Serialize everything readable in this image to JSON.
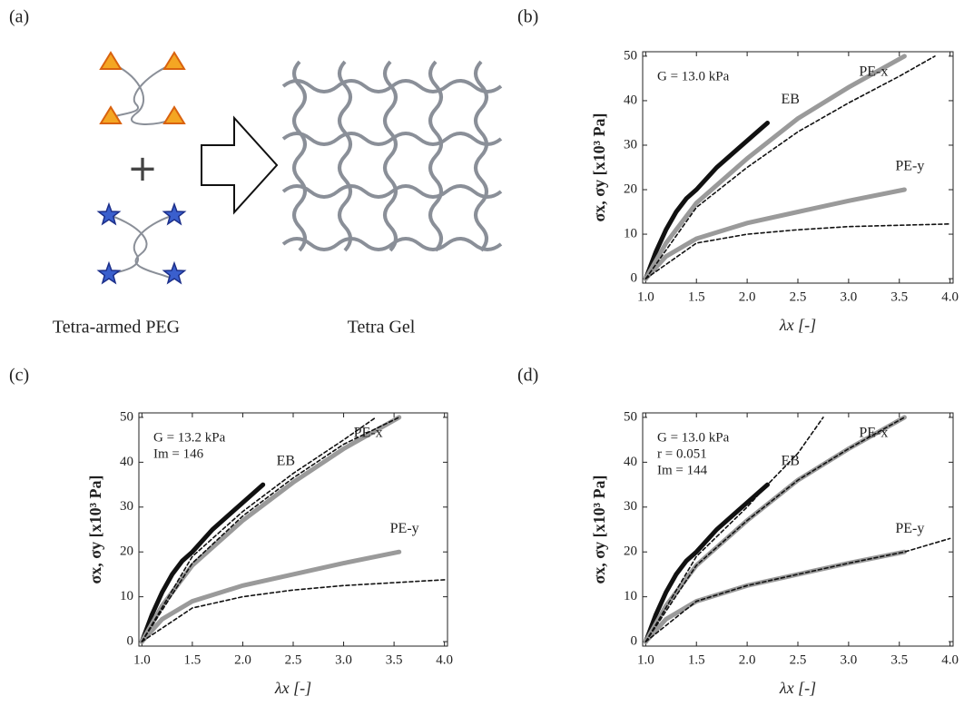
{
  "panel_a": {
    "label": "(a)",
    "plus": "+",
    "left_caption": "Tetra-armed PEG",
    "right_caption": "Tetra Gel"
  },
  "chart_data": [
    {
      "type": "line",
      "panel": "(b)",
      "xlabel": "λx [-]",
      "ylabel": "σx, σy [x10³ Pa]",
      "annotations": [
        "G = 13.0 kPa"
      ],
      "xlim": [
        0.97,
        4.03
      ],
      "ylim": [
        -1,
        51
      ],
      "xticks": [
        {
          "value": 1,
          "label": "1.0"
        },
        {
          "value": 1.5,
          "label": "1.5"
        },
        {
          "value": 2,
          "label": "2.0"
        },
        {
          "value": 2.5,
          "label": "2.5"
        },
        {
          "value": 3,
          "label": "3.0"
        },
        {
          "value": 3.5,
          "label": "3.5"
        },
        {
          "value": 4,
          "label": "4.0"
        }
      ],
      "yticks": [
        0,
        10,
        20,
        30,
        40,
        50
      ],
      "series": [
        {
          "name": "EB",
          "color": "#111111",
          "x": [
            1.0,
            1.1,
            1.2,
            1.3,
            1.4,
            1.5,
            1.7,
            1.9,
            2.1,
            2.2
          ],
          "values": [
            0,
            6,
            11,
            15,
            18,
            20,
            25,
            29,
            33,
            35
          ]
        },
        {
          "name": "PE-x",
          "color": "#9a9a9a",
          "x": [
            1.0,
            1.2,
            1.5,
            2.0,
            2.5,
            3.0,
            3.55
          ],
          "values": [
            0,
            8,
            17,
            27,
            36,
            43,
            50
          ]
        },
        {
          "name": "PE-y",
          "color": "#9a9a9a",
          "x": [
            1.0,
            1.2,
            1.5,
            2.0,
            2.5,
            3.0,
            3.55
          ],
          "values": [
            0,
            5,
            9,
            12.5,
            15,
            17.5,
            20
          ]
        },
        {
          "color": "#111111",
          "dash": true,
          "x": [
            1.0,
            1.5,
            2.0,
            2.5,
            3.0,
            3.5,
            3.85
          ],
          "values": [
            0,
            16,
            25,
            33,
            39.5,
            45.5,
            50
          ]
        },
        {
          "color": "#111111",
          "dash": true,
          "x": [
            1.0,
            1.5,
            2.0,
            2.5,
            3.0,
            4.0
          ],
          "values": [
            0,
            8,
            10,
            11,
            11.7,
            12.3
          ]
        }
      ]
    },
    {
      "type": "line",
      "panel": "(c)",
      "xlabel": "λx [-]",
      "ylabel": "σx, σy [x10³ Pa]",
      "annotations": [
        "G = 13.2 kPa",
        "Im = 146"
      ],
      "xlim": [
        0.97,
        4.03
      ],
      "ylim": [
        -1,
        51
      ],
      "xticks": [
        {
          "value": 1,
          "label": "1.0"
        },
        {
          "value": 1.5,
          "label": "1.5"
        },
        {
          "value": 2,
          "label": "2.0"
        },
        {
          "value": 2.5,
          "label": "2.5"
        },
        {
          "value": 3,
          "label": "3.0"
        },
        {
          "value": 3.5,
          "label": "3.5"
        },
        {
          "value": 4,
          "label": "4.0"
        }
      ],
      "yticks": [
        0,
        10,
        20,
        30,
        40,
        50
      ],
      "series": [
        {
          "name": "EB",
          "color": "#111111",
          "x": [
            1.0,
            1.1,
            1.2,
            1.3,
            1.4,
            1.5,
            1.7,
            1.9,
            2.1,
            2.2
          ],
          "values": [
            0,
            6,
            11,
            15,
            18,
            20,
            25,
            29,
            33,
            35
          ]
        },
        {
          "name": "PE-x",
          "color": "#9a9a9a",
          "x": [
            1.0,
            1.2,
            1.5,
            2.0,
            2.5,
            3.0,
            3.55
          ],
          "values": [
            0,
            8,
            17,
            27,
            35.5,
            43,
            50
          ]
        },
        {
          "name": "PE-y",
          "color": "#9a9a9a",
          "x": [
            1.0,
            1.2,
            1.5,
            2.0,
            2.5,
            3.0,
            3.55
          ],
          "values": [
            0,
            5,
            9,
            12.5,
            15,
            17.5,
            20
          ]
        },
        {
          "color": "#111111",
          "dash": true,
          "x": [
            1.0,
            1.5,
            2.0,
            2.5,
            3.0,
            3.32
          ],
          "values": [
            0,
            19,
            29,
            37.5,
            45,
            50
          ]
        },
        {
          "color": "#111111",
          "dash": true,
          "x": [
            1.0,
            1.5,
            2.0,
            2.5,
            3.0,
            3.55
          ],
          "values": [
            0,
            17.5,
            28,
            36.5,
            44,
            50
          ]
        },
        {
          "color": "#111111",
          "dash": true,
          "x": [
            1.0,
            1.5,
            2.0,
            2.5,
            3.0,
            4.0
          ],
          "values": [
            0,
            7.5,
            10,
            11.5,
            12.5,
            13.8
          ]
        }
      ]
    },
    {
      "type": "line",
      "panel": "(d)",
      "xlabel": "λx [-]",
      "ylabel": "σx, σy [x10³ Pa]",
      "annotations": [
        "G = 13.0 kPa",
        "r = 0.051",
        "Im = 144"
      ],
      "xlim": [
        0.97,
        4.03
      ],
      "ylim": [
        -1,
        51
      ],
      "xticks": [
        {
          "value": 1,
          "label": "1.0"
        },
        {
          "value": 1.5,
          "label": "1.5"
        },
        {
          "value": 2,
          "label": "2.0"
        },
        {
          "value": 2.5,
          "label": "2.5"
        },
        {
          "value": 3,
          "label": "3.0"
        },
        {
          "value": 3.5,
          "label": "3.5"
        },
        {
          "value": 4,
          "label": "4.0"
        }
      ],
      "yticks": [
        0,
        10,
        20,
        30,
        40,
        50
      ],
      "series": [
        {
          "name": "EB",
          "color": "#111111",
          "x": [
            1.0,
            1.1,
            1.2,
            1.3,
            1.4,
            1.5,
            1.7,
            1.9,
            2.1,
            2.2
          ],
          "values": [
            0,
            6,
            11,
            15,
            18,
            20,
            25,
            29,
            33,
            35
          ]
        },
        {
          "name": "PE-x",
          "color": "#9a9a9a",
          "x": [
            1.0,
            1.2,
            1.5,
            2.0,
            2.5,
            3.0,
            3.55
          ],
          "values": [
            0,
            8,
            17,
            27,
            36,
            43,
            50
          ]
        },
        {
          "name": "PE-y",
          "color": "#9a9a9a",
          "x": [
            1.0,
            1.2,
            1.5,
            2.0,
            2.5,
            3.0,
            3.55
          ],
          "values": [
            0,
            5,
            9,
            12.5,
            15,
            17.5,
            20
          ]
        },
        {
          "color": "#111111",
          "dash": true,
          "x": [
            1.0,
            1.5,
            2.0,
            2.2,
            2.5,
            2.75
          ],
          "values": [
            0,
            19,
            30,
            35,
            42,
            50
          ]
        },
        {
          "color": "#111111",
          "dash": true,
          "x": [
            1.0,
            1.5,
            2.0,
            2.5,
            3.0,
            3.55
          ],
          "values": [
            0,
            17,
            27,
            36,
            43,
            50
          ]
        },
        {
          "color": "#111111",
          "dash": true,
          "x": [
            1.0,
            1.5,
            2.0,
            2.5,
            3.0,
            3.55,
            4.0
          ],
          "values": [
            0,
            9,
            12.5,
            15,
            17.5,
            20,
            23
          ]
        }
      ]
    }
  ]
}
